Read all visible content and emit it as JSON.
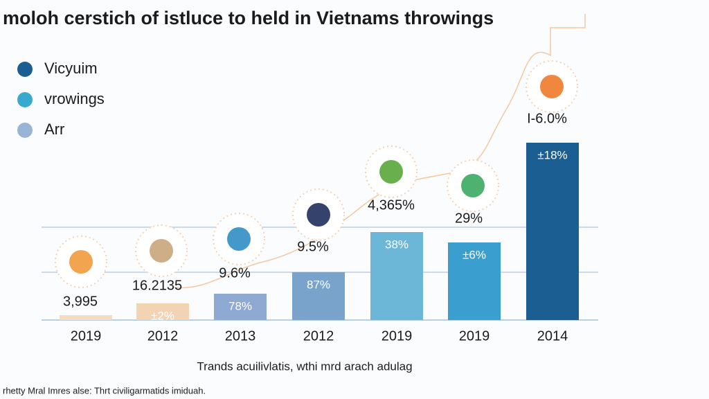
{
  "chart_data": {
    "type": "bar",
    "title": "moloh cerstich of istluce to held in Vietnams throwings",
    "x_label": "Trands acuilivlatis, wthi mrd arach adulag",
    "footer": "rhetty Mral Imres alse: Thrt civiligarmatids imiduah.",
    "legend": [
      {
        "name": "Vicyuim",
        "color": "#1a5e92"
      },
      {
        "name": "vrowings",
        "color": "#3aa9d0"
      },
      {
        "name": "Arr",
        "color": "#9ab4d6"
      }
    ],
    "categories": [
      "2019",
      "2012",
      "2013",
      "2012",
      "2019",
      "2019",
      "2014"
    ],
    "values": [
      7,
      24,
      38,
      69,
      127,
      112,
      256
    ],
    "value_labels": [
      null,
      "±2%",
      "78%",
      "87%",
      "38%",
      "±6%",
      "±18%"
    ],
    "bar_annotations": [
      "3,995",
      "16.2135",
      "9.6%",
      "9.5%",
      "4,365%",
      "29%",
      "I-6.0%"
    ],
    "colors": [
      "#f3dcc2",
      "#f2d4b4",
      "#8ea9d2",
      "#7aa3cc",
      "#6cb6d8",
      "#3a9fcf",
      "#1a5e92"
    ],
    "ylim": [
      0,
      280
    ]
  }
}
